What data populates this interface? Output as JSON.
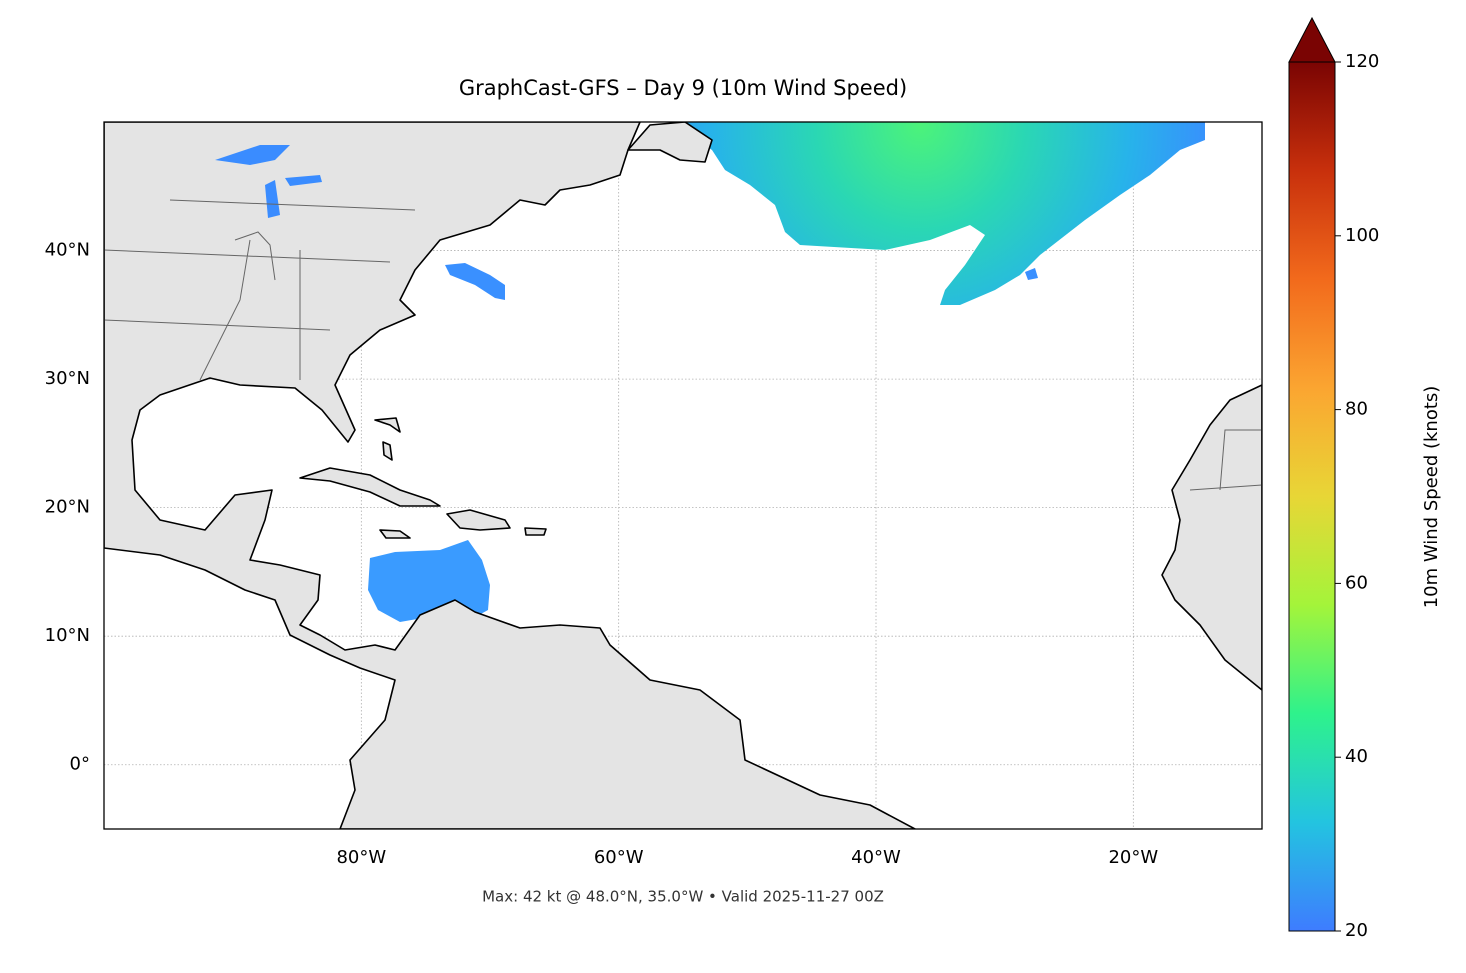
{
  "chart_data": {
    "type": "map",
    "title": "GraphCast-GFS – Day 9 (10m Wind Speed)",
    "xlim": [
      -100,
      -10
    ],
    "ylim": [
      -5,
      50
    ],
    "xticks": [
      {
        "value": -80,
        "label": "80°W"
      },
      {
        "value": -60,
        "label": "60°W"
      },
      {
        "value": -40,
        "label": "40°W"
      },
      {
        "value": -20,
        "label": "20°W"
      }
    ],
    "yticks": [
      {
        "value": 0,
        "label": "0°"
      },
      {
        "value": 10,
        "label": "10°N"
      },
      {
        "value": 20,
        "label": "20°N"
      },
      {
        "value": 30,
        "label": "30°N"
      },
      {
        "value": 40,
        "label": "40°N"
      }
    ],
    "grid": true,
    "colorbar": {
      "label": "10m Wind Speed (knots)",
      "lim": [
        20,
        120
      ],
      "ticks": [
        20,
        40,
        60,
        80,
        100,
        120
      ],
      "colors": [
        "#3e7cff",
        "#23c4e0",
        "#2ef28c",
        "#a4f43a",
        "#e8d636",
        "#fba531",
        "#f26a1c",
        "#c8300c",
        "#7a0403"
      ]
    },
    "annotation": "Max: 42 kt @ 48.0°N, 35.0°W • Valid 2025-11-27 00Z"
  }
}
